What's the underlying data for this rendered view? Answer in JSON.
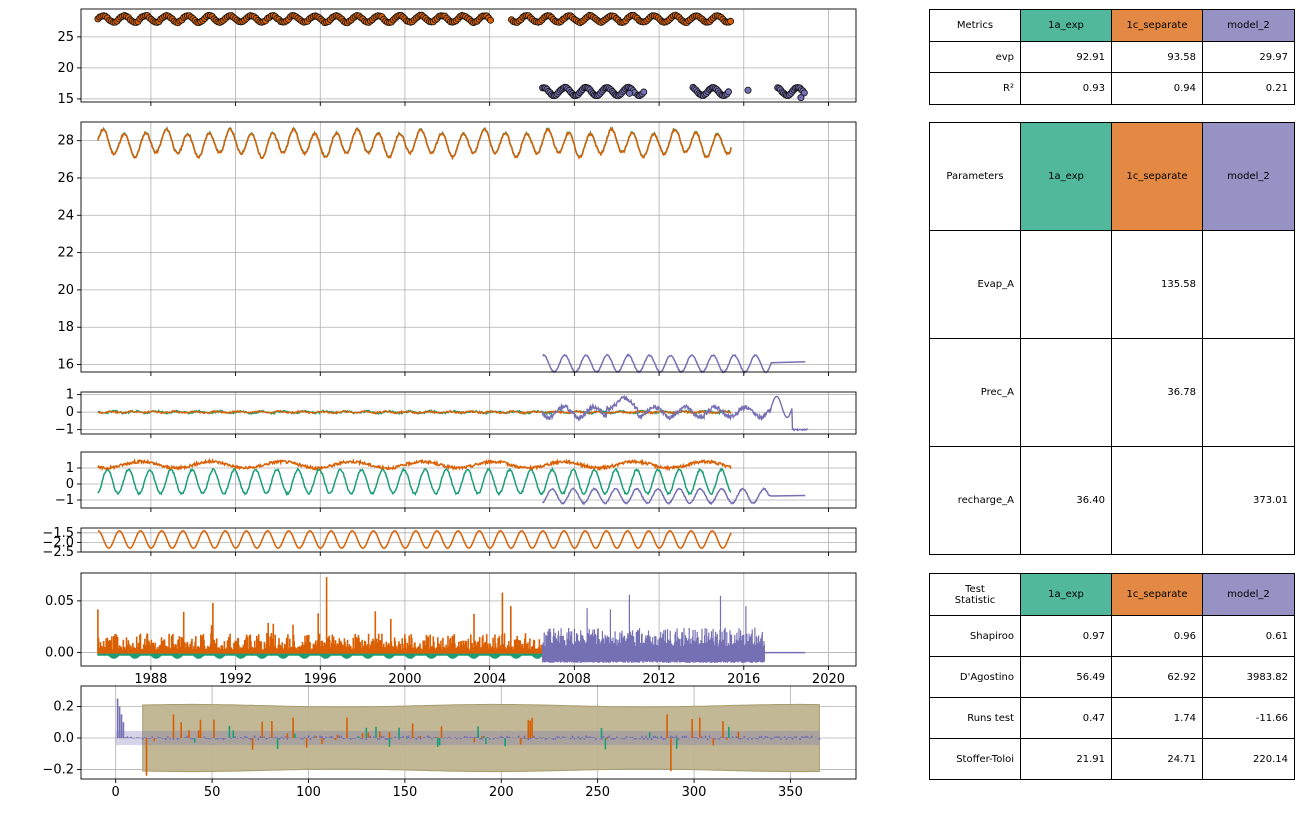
{
  "colors": {
    "a": "#1b9e77",
    "b": "#d95f02",
    "c": "#7570b3",
    "band": "#bfb48f",
    "grid": "#b0b0b0"
  },
  "chart_data": [
    {
      "type": "scatter",
      "yticks": [
        "15",
        "20",
        "25"
      ],
      "ylim": [
        14.5,
        29.5
      ],
      "xlim": [
        1984.7,
        2021.3
      ],
      "series": [
        {
          "color": "orange",
          "values": "daily obs ~27.2-28.6, 1985.5-2015.4"
        },
        {
          "color": "purple",
          "values": "daily obs ~15.2-17.4, 2006.5-2018.9"
        }
      ]
    },
    {
      "type": "line",
      "yticks": [
        "16",
        "18",
        "20",
        "22",
        "24",
        "26",
        "28"
      ],
      "ylim": [
        15.6,
        29.0
      ],
      "xlim": [
        1984.7,
        2021.3
      ],
      "series": [
        {
          "color": "green",
          "values": "~26.9-28.9, 1985.5-2015.4"
        },
        {
          "color": "orange",
          "values": "~26.9-28.9, 1985.5-2015.4"
        },
        {
          "color": "purple",
          "values": "~15.5-16.7, 2006.5-2018.9"
        }
      ]
    },
    {
      "type": "line",
      "yticks": [
        "1",
        "0",
        "−1"
      ],
      "ylim": [
        -1.25,
        1.15
      ],
      "xlim": [
        1984.7,
        2021.3
      ]
    },
    {
      "type": "line",
      "yticks": [
        "1",
        "0",
        "−1"
      ],
      "ylim": [
        -1.5,
        2.0
      ],
      "xlim": [
        1984.7,
        2021.3
      ]
    },
    {
      "type": "line",
      "yticks": [
        "−1.5",
        "−2.0",
        "−2.5"
      ],
      "ylim": [
        -2.5,
        -1.25
      ],
      "xlim": [
        1984.7,
        2021.3
      ]
    },
    {
      "type": "line",
      "yticks": [
        "0.05",
        "0.00"
      ],
      "ylim": [
        -0.013,
        0.077
      ],
      "xlim": [
        1984.7,
        2021.3
      ],
      "xticks": [
        "1988",
        "1992",
        "1996",
        "2000",
        "2004",
        "2008",
        "2012",
        "2016",
        "2020"
      ]
    },
    {
      "type": "bar",
      "yticks": [
        "0.2",
        "0.0",
        "−0.2"
      ],
      "ylim": [
        -0.26,
        0.33
      ],
      "xlim": [
        -18,
        384
      ],
      "xticks": [
        "0",
        "50",
        "100",
        "150",
        "200",
        "250",
        "300",
        "350"
      ]
    }
  ],
  "metrics": {
    "header": [
      "Metrics",
      "1a_exp",
      "1c_separate",
      "model_2"
    ],
    "rows": [
      [
        "evp",
        "92.91",
        "93.58",
        "29.97"
      ],
      [
        "R²",
        "0.93",
        "0.94",
        "0.21"
      ]
    ]
  },
  "params": {
    "header": [
      "Parameters",
      "1a_exp",
      "1c_separate",
      "model_2"
    ],
    "rows": [
      [
        "Evap_A",
        "",
        "135.58",
        ""
      ],
      [
        "Prec_A",
        "",
        "36.78",
        ""
      ],
      [
        "recharge_A",
        "36.40",
        "",
        "373.01"
      ]
    ]
  },
  "tests": {
    "header": [
      "Test\nStatistic",
      "1a_exp",
      "1c_separate",
      "model_2"
    ],
    "rows": [
      [
        "Shapiroo",
        "0.97",
        "0.96",
        "0.61"
      ],
      [
        "D'Agostino",
        "56.49",
        "62.92",
        "3983.82"
      ],
      [
        "Runs test",
        "0.47",
        "1.74",
        "-11.66"
      ],
      [
        "Stoffer-Toloi",
        "21.91",
        "24.71",
        "220.14"
      ]
    ]
  }
}
